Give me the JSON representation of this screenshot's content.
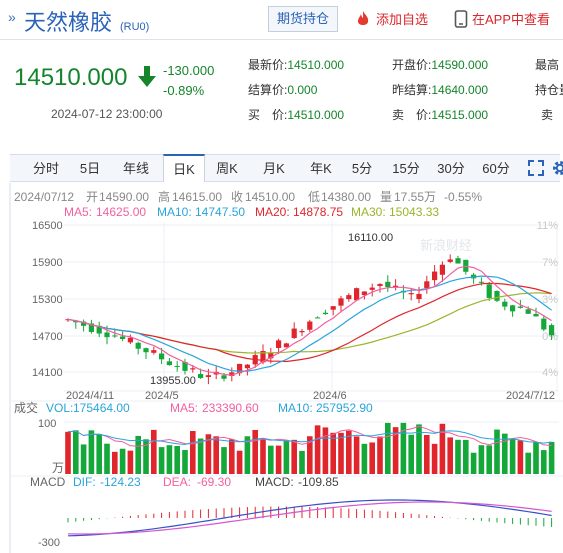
{
  "header": {
    "title": "天然橡胶",
    "code": "(RU0)",
    "hold_btn": "期货持仓",
    "fav_btn": "添加自选",
    "app_btn": "在APP中查看"
  },
  "quote": {
    "price": "14510.000",
    "change": "-130.000",
    "change_pct": "-0.89%",
    "time": "2024-07-12 23:00:00",
    "latest_label": "最新价:",
    "latest": "14510.000",
    "settle_label": "结算价:",
    "settle": "0.000",
    "bid_label": "买　价:",
    "bid": "14510.000",
    "open_label": "开盘价:",
    "open": "14590.000",
    "prev_settle_label": "昨结算:",
    "prev_settle": "14640.000",
    "ask_label": "卖　价:",
    "ask": "14515.000",
    "high_label": "最高",
    "oi_label": "持仓量",
    "ask_vol_label": "卖"
  },
  "tabs": [
    "分时",
    "5日",
    "年线",
    "日K",
    "周K",
    "月K",
    "年K",
    "5分",
    "15分",
    "30分",
    "60分"
  ],
  "active_tab": 3,
  "colors": {
    "up": "#e0262c",
    "down": "#14a83a",
    "ma5": "#f35fa0",
    "ma10": "#2aa5dc",
    "ma20": "#e0262c",
    "ma30": "#9ab52b",
    "accent": "#2a63b8"
  },
  "info": {
    "date": "2024/07/12",
    "open_l": "开",
    "open": "14590.00",
    "high_l": "高",
    "high": "14615.00",
    "close_l": "收",
    "close": "14510.00",
    "low_l": "低",
    "low": "14380.00",
    "vol_l": "量",
    "vol": "17.55万",
    "pct": "-0.55%"
  },
  "ma": {
    "ma5_label": "MA5:",
    "ma5": "14625.00",
    "ma10_label": "MA10:",
    "ma10": "14747.50",
    "ma20_label": "MA20:",
    "ma20": "14878.75",
    "ma30_label": "MA30:",
    "ma30": "15043.33"
  },
  "price_axis": [
    "16500",
    "15900",
    "15300",
    "14700",
    "14100"
  ],
  "pct_axis": [
    "11%",
    "7%",
    "3%",
    "0%",
    "4%"
  ],
  "date_axis": [
    "2024/4/11",
    "2024/5",
    "2024/6",
    "2024/7/12"
  ],
  "annotations": {
    "high": "16110.00",
    "low": "13955.00"
  },
  "watermark": "新浪财经",
  "volume": {
    "label": "成交",
    "vol_label": "VOL:",
    "vol": "175464.00",
    "ma5_label": "MA5:",
    "ma5": "233390.60",
    "ma10_label": "MA10:",
    "ma10": "257952.90",
    "axis_top": "100",
    "unit": "万"
  },
  "macd": {
    "label": "MACD",
    "dif_label": "DIF:",
    "dif": "-124.23",
    "dea_label": "DEA:",
    "dea": "-69.30",
    "macd_label": "MACD:",
    "macd": "-109.85",
    "axis_bottom": "-300"
  }
}
